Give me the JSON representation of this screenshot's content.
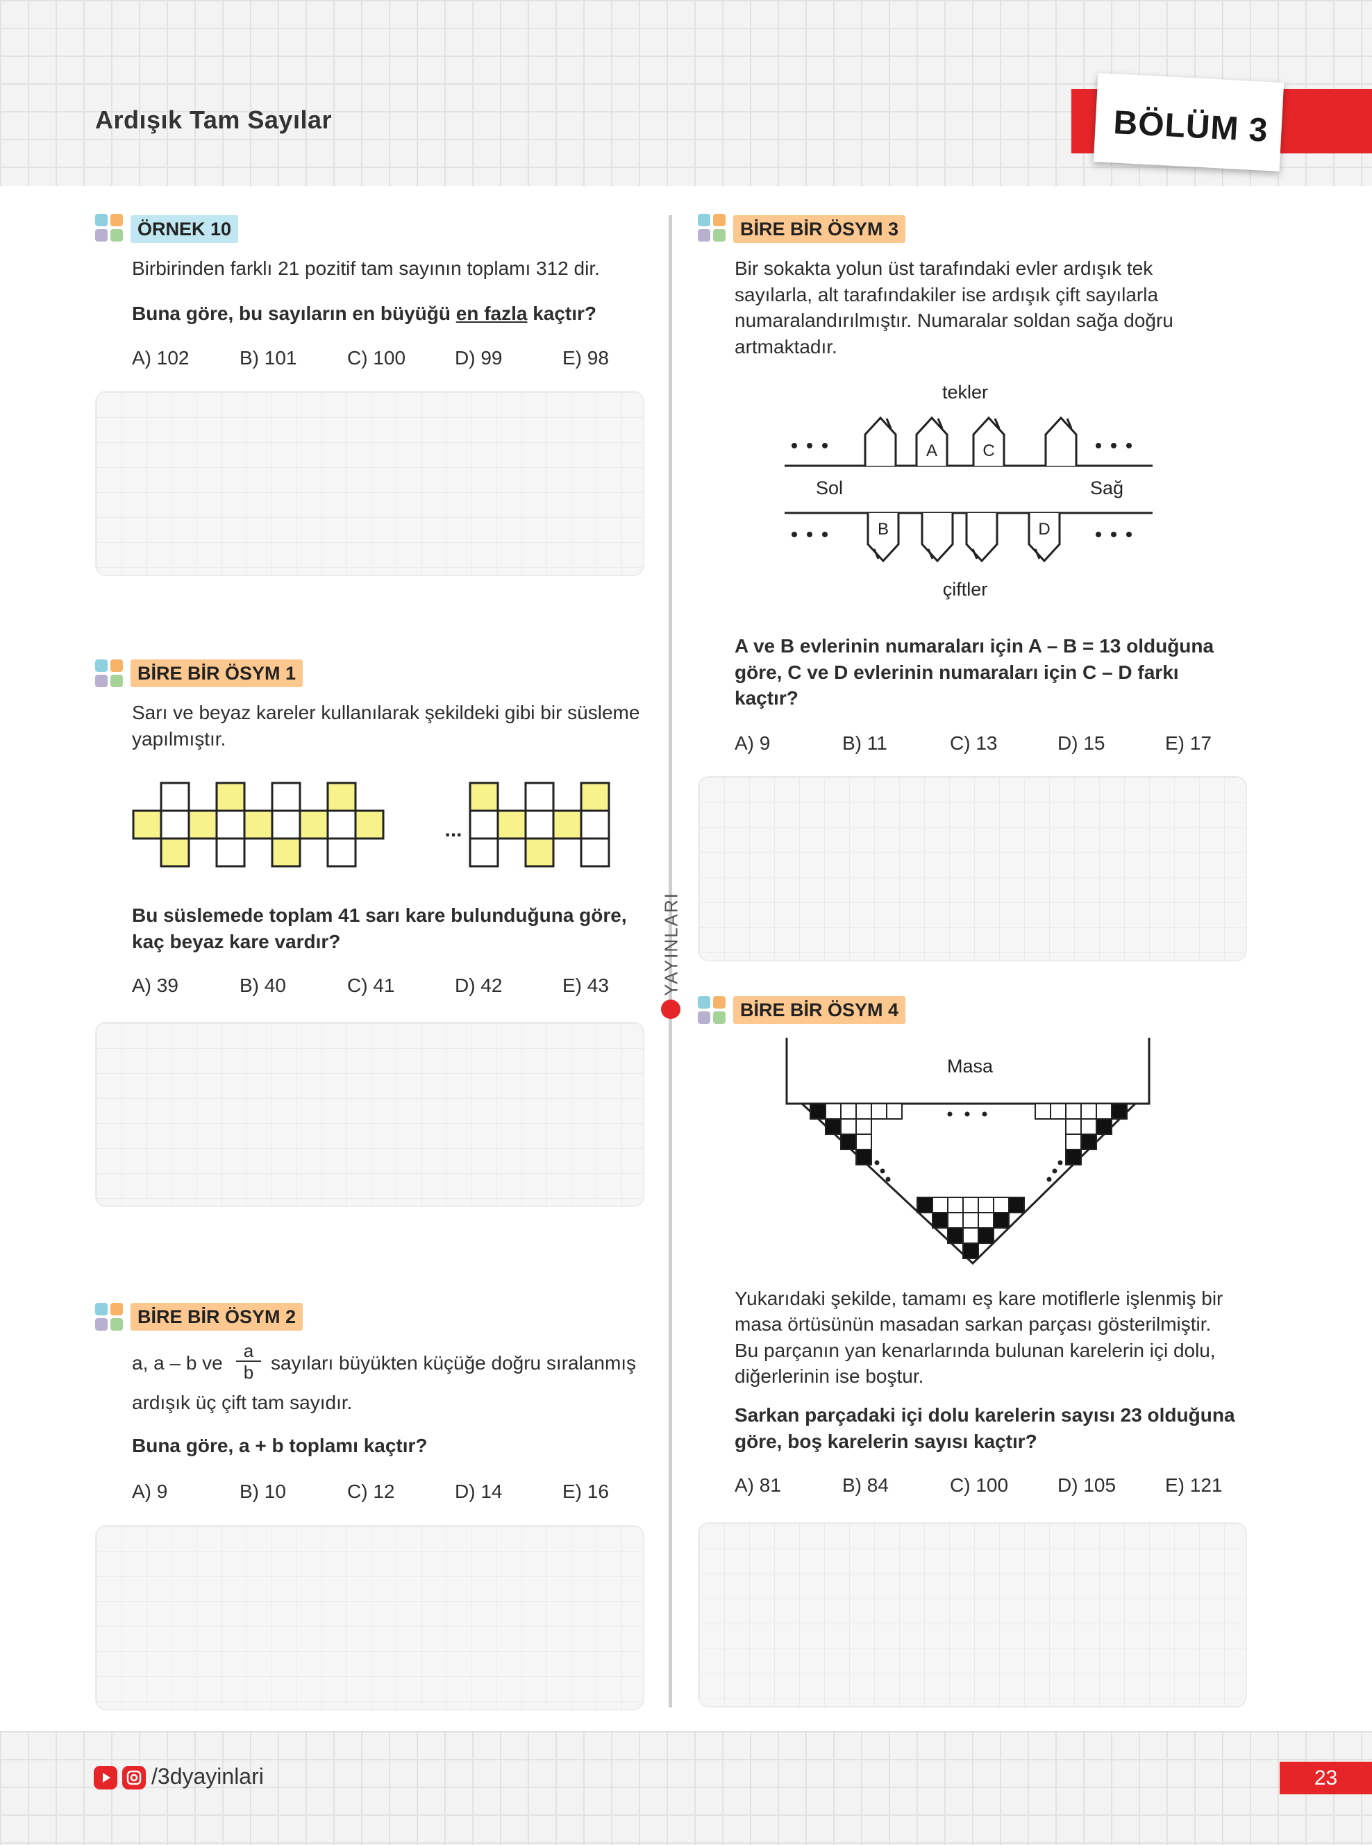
{
  "header": {
    "title": "Ardışık Tam Sayılar",
    "chapter": "BÖLÜM 3"
  },
  "sidebar": {
    "publisher": "YAYINLARI"
  },
  "footer": {
    "social": "/3dyayinlari",
    "page_number": "23"
  },
  "colors": {
    "accent_red": "#e52528",
    "label_blue": "#bfe6f1",
    "label_orange": "#fcc88f",
    "tile_yellow": "#f7f28a"
  },
  "q_ornek10": {
    "label": "ÖRNEK 10",
    "text": "Birbirinden farklı 21 pozitif tam sayının toplamı 312 dir.",
    "q_pre": "Buna göre, bu sayıların en büyüğü ",
    "q_em": "en fazla",
    "q_post": " kaçtır?",
    "options": [
      "A) 102",
      "B) 101",
      "C) 100",
      "D) 99",
      "E) 98"
    ]
  },
  "q_osym1": {
    "label": "BİRE BİR ÖSYM 1",
    "text1": "Sarı ve beyaz kareler kullanılarak şekildeki gibi bir süsleme",
    "text2": "yapılmıştır.",
    "ellipsis": "...",
    "question1": "Bu süslemede toplam 41 sarı kare bulunduğuna göre,",
    "question2": "kaç beyaz kare vardır?",
    "options": [
      "A) 39",
      "B) 40",
      "C) 41",
      "D) 42",
      "E) 43"
    ]
  },
  "q_osym2": {
    "label": "BİRE BİR ÖSYM 2",
    "pre": "a, a – b ve",
    "frac_num": "a",
    "frac_den": "b",
    "post": "sayıları büyükten küçüğe doğru sıralanmış",
    "line2": "ardışık üç çift tam sayıdır.",
    "question": "Buna göre, a + b toplamı kaçtır?",
    "options": [
      "A) 9",
      "B) 10",
      "C) 12",
      "D) 14",
      "E) 16"
    ]
  },
  "q_osym3": {
    "label": "BİRE BİR ÖSYM 3",
    "text1": "Bir sokakta yolun üst tarafındaki evler ardışık tek",
    "text2": "sayılarla, alt tarafındakiler ise ardışık çift sayılarla",
    "text3": "numaralandırılmıştır. Numaralar soldan sağa doğru",
    "text4": "artmaktadır.",
    "fig": {
      "top": "tekler",
      "bottom": "çiftler",
      "left": "Sol",
      "right": "Sağ",
      "A": "A",
      "B": "B",
      "C": "C",
      "D": "D"
    },
    "question1": "A ve B evlerinin numaraları için A – B = 13 olduğuna",
    "question2": "göre, C ve D evlerinin numaraları için C – D farkı",
    "question3": "kaçtır?",
    "options": [
      "A) 9",
      "B) 11",
      "C) 13",
      "D) 15",
      "E) 17"
    ]
  },
  "q_osym4": {
    "label": "BİRE BİR ÖSYM 4",
    "fig_label": "Masa",
    "text1": "Yukarıdaki şekilde, tamamı eş kare motiflerle işlenmiş bir",
    "text2": "masa örtüsünün masadan sarkan parçası gösterilmiştir.",
    "text3": "Bu parçanın yan kenarlarında bulunan karelerin içi dolu,",
    "text4": "diğerlerinin ise boştur.",
    "question1": "Sarkan parçadaki içi dolu karelerin sayısı 23 olduğuna",
    "question2": "göre, boş karelerin sayısı kaçtır?",
    "options": [
      "A) 81",
      "B) 84",
      "C) 100",
      "D) 105",
      "E) 121"
    ]
  }
}
